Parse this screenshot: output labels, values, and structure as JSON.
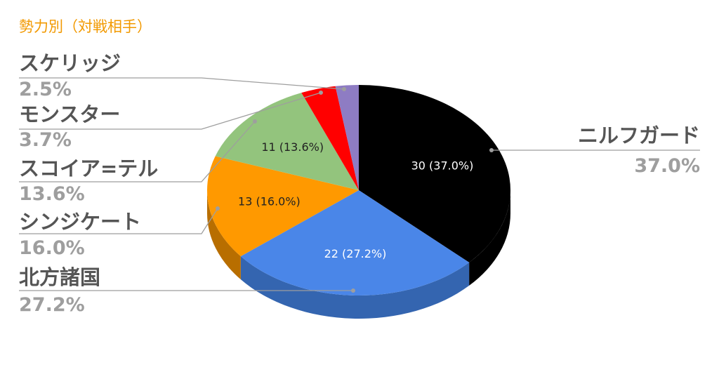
{
  "chart_data": {
    "type": "pie",
    "style": "3d",
    "title": "勢力別（対戦相手）",
    "categories": [
      "ニルフガード",
      "北方諸国",
      "シンジケート",
      "スコイア=テル",
      "モンスター",
      "スケリッジ"
    ],
    "values": [
      30,
      22,
      13,
      11,
      3,
      2
    ],
    "percentages": [
      "37.0%",
      "27.2%",
      "16.0%",
      "13.6%",
      "3.7%",
      "2.5%"
    ],
    "slice_labels": [
      "30 (37.0%)",
      "22 (27.2%)",
      "13 (16.0%)",
      "11 (13.6%)",
      "",
      ""
    ],
    "legend": "none",
    "colors": {
      "title": "#f29900",
      "slices": [
        "#000000",
        "#4a86e8",
        "#ff9900",
        "#93c47d",
        "#ff0000",
        "#8e7cc3"
      ],
      "sides": [
        "#000000",
        "#3465b0",
        "#b86e00",
        "#6a8f5a",
        "#b80000",
        "#675a8d"
      ],
      "inner_text": [
        "#ffffff",
        "#ffffff",
        "#222222",
        "#222222",
        "#222222",
        "#222222"
      ]
    }
  }
}
